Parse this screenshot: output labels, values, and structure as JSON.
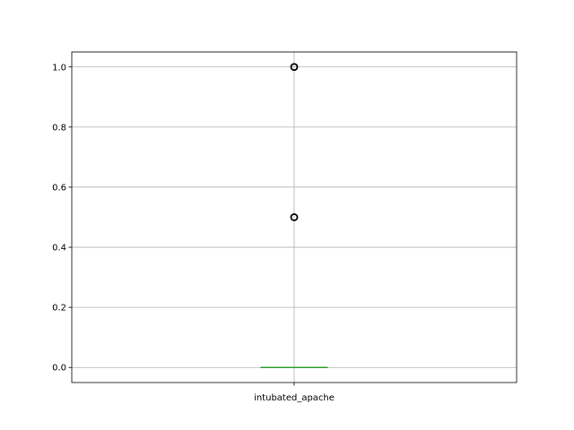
{
  "chart_data": {
    "type": "box",
    "title": "",
    "xlabel": "",
    "ylabel": "",
    "categories": [
      "intubated_apache"
    ],
    "ylim": [
      -0.05,
      1.05
    ],
    "yticks": [
      0.0,
      0.2,
      0.4,
      0.6,
      0.8,
      1.0
    ],
    "ytick_labels": [
      "0.0",
      "0.2",
      "0.4",
      "0.6",
      "0.8",
      "1.0"
    ],
    "grid": true,
    "boxes": [
      {
        "category": "intubated_apache",
        "min": 0.0,
        "q1": 0.0,
        "median": 0.0,
        "q3": 0.0,
        "max": 0.0,
        "outliers": [
          0.5,
          1.0
        ]
      }
    ],
    "colors": {
      "box": "#1f77b4",
      "median": "#2ca02c",
      "outlier": "#000000"
    }
  }
}
